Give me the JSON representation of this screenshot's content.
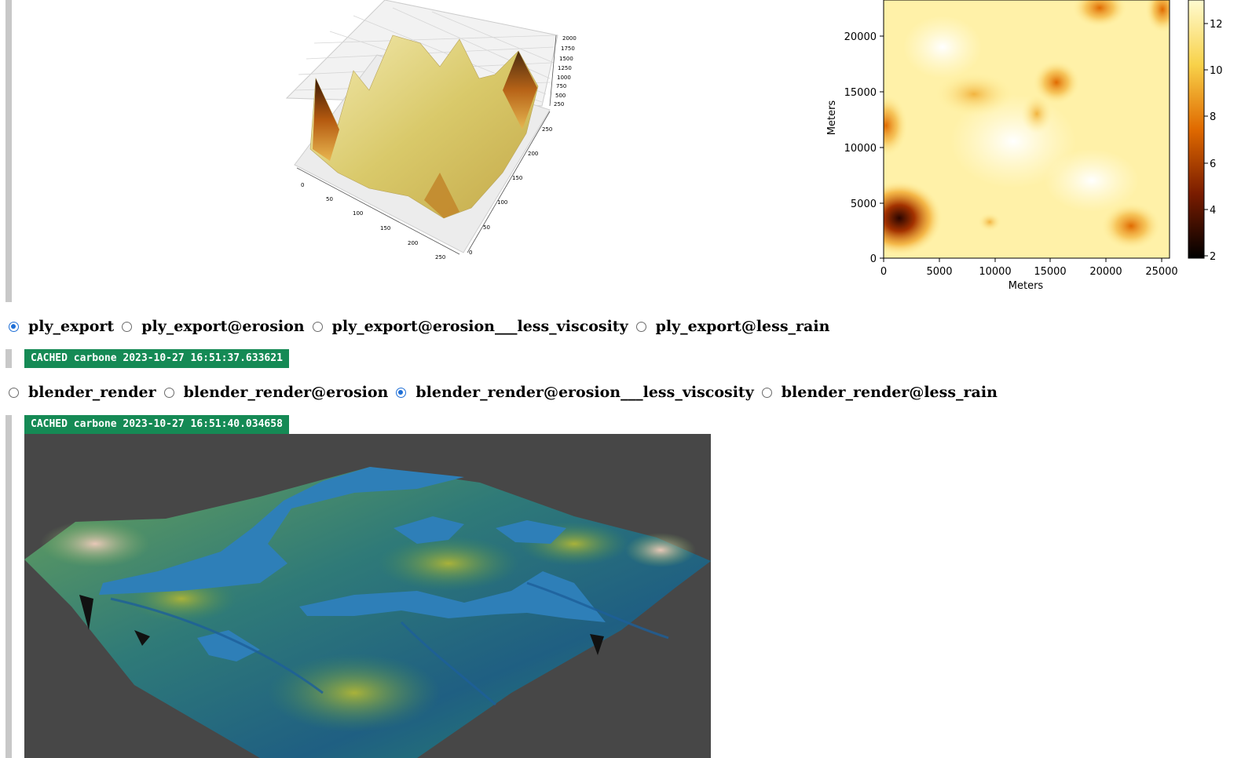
{
  "surface_plot": {
    "z_ticks": [
      "2000",
      "1750",
      "1500",
      "1250",
      "1000",
      "750",
      "500",
      "250"
    ],
    "x_ticks": [
      "0",
      "50",
      "100",
      "150",
      "200",
      "250"
    ],
    "y_ticks": [
      "250",
      "200",
      "150",
      "100",
      "50",
      "0"
    ]
  },
  "heatmap_chart": {
    "chart_data": {
      "type": "heatmap",
      "title": "",
      "xlabel": "Meters",
      "ylabel": "Meters",
      "x_ticks": [
        "0",
        "5000",
        "10000",
        "15000",
        "20000",
        "25000"
      ],
      "y_ticks": [
        "0",
        "5000",
        "10000",
        "15000",
        "20000"
      ],
      "colorbar_ticks": [
        "2",
        "4",
        "6",
        "8",
        "10",
        "12"
      ],
      "colormap": "afmhot"
    }
  },
  "ply_export_selector": {
    "options": [
      "ply_export",
      "ply_export@erosion",
      "ply_export@erosion___less_viscosity",
      "ply_export@less_rain"
    ],
    "selected_index": 0
  },
  "ply_export_status": "CACHED carbone 2023-10-27 16:51:37.633621",
  "blender_render_selector": {
    "options": [
      "blender_render",
      "blender_render@erosion",
      "blender_render@erosion___less_viscosity",
      "blender_render@less_rain"
    ],
    "selected_index": 2
  },
  "blender_render_status": "CACHED carbone 2023-10-27 16:51:40.034658",
  "colors": {
    "accent": "#1f6fd6",
    "badge": "#158a55",
    "render_background": "#474747",
    "water": "#2e7fb8"
  }
}
